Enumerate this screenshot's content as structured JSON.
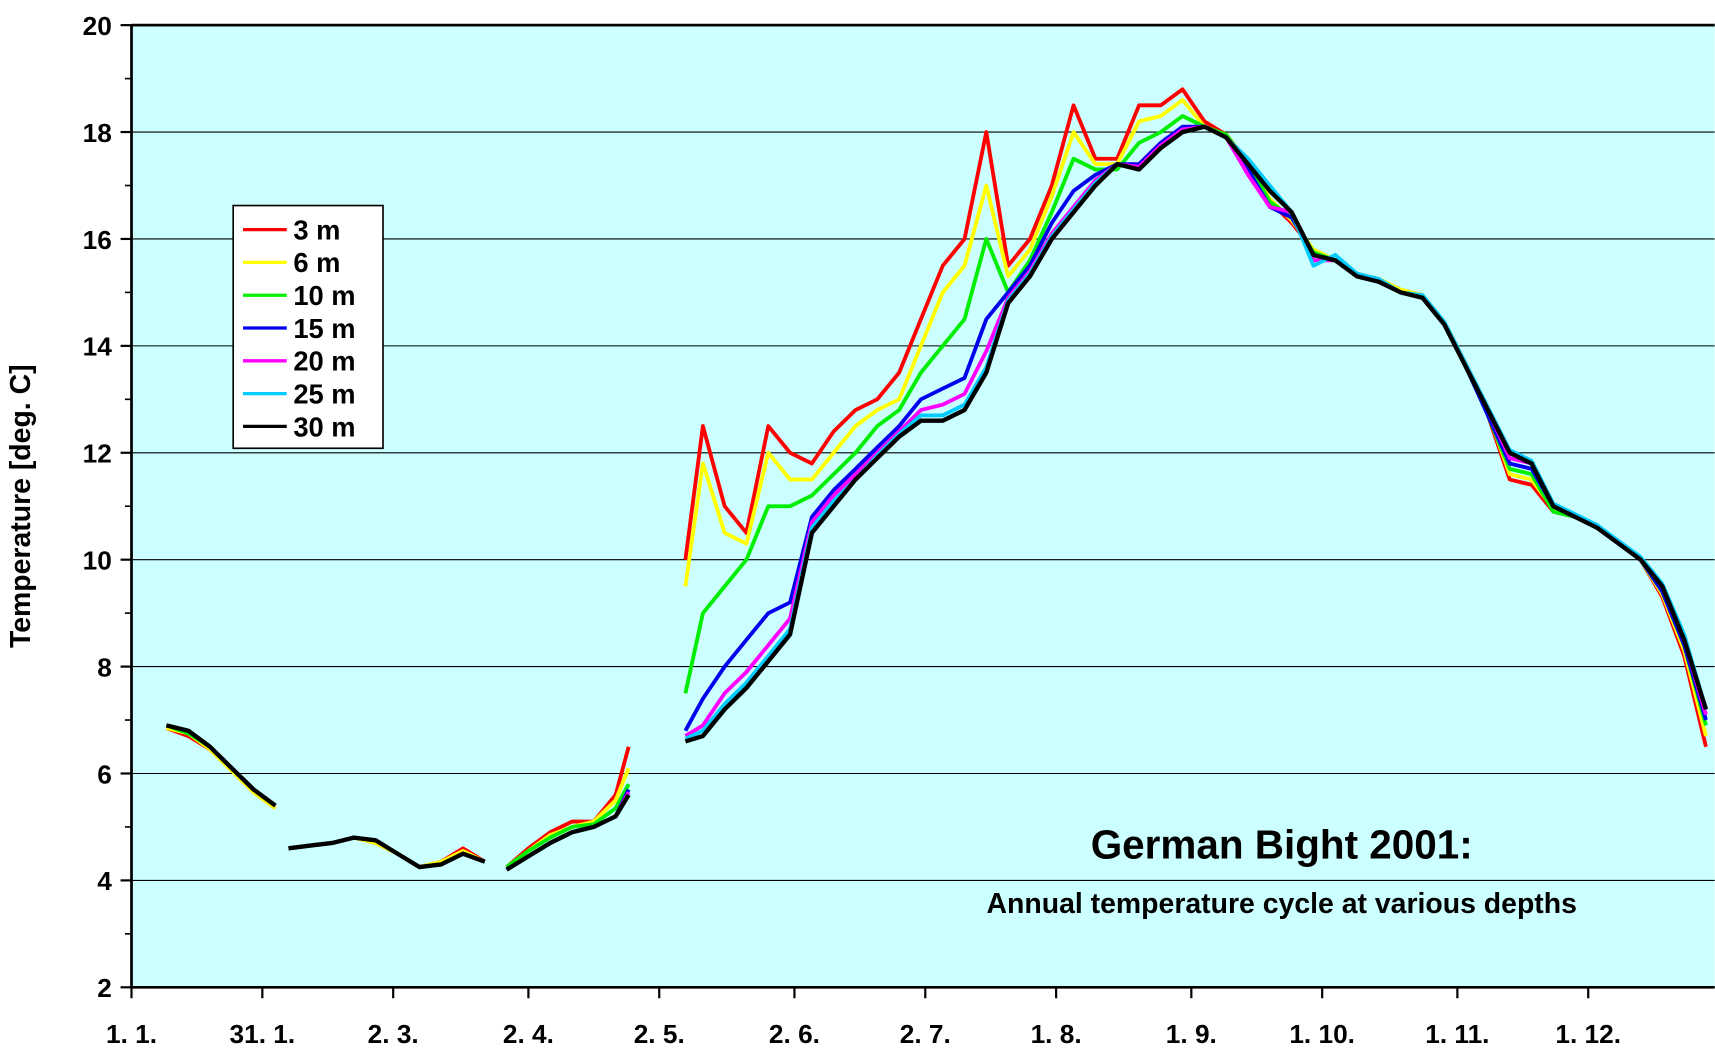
{
  "chart_data": {
    "type": "line",
    "title": "German Bight 2001:",
    "subtitle": "Annual temperature cycle at various depths",
    "y_label": "Temperature [deg. C]",
    "xlim": [
      0,
      363
    ],
    "ylim": [
      2,
      20
    ],
    "yticks": [
      2,
      4,
      6,
      8,
      10,
      12,
      14,
      16,
      18,
      20
    ],
    "xticks": [
      {
        "value": 0,
        "label": "1. 1."
      },
      {
        "value": 30,
        "label": "31. 1."
      },
      {
        "value": 60,
        "label": "2. 3."
      },
      {
        "value": 91,
        "label": "2. 4."
      },
      {
        "value": 121,
        "label": "2. 5."
      },
      {
        "value": 152,
        "label": "2. 6."
      },
      {
        "value": 182,
        "label": "2. 7."
      },
      {
        "value": 212,
        "label": "1. 8."
      },
      {
        "value": 243,
        "label": "1. 9."
      },
      {
        "value": 273,
        "label": "1. 10."
      },
      {
        "value": 304,
        "label": "1. 11."
      },
      {
        "value": 334,
        "label": "1. 12."
      }
    ],
    "grid": true,
    "background": "#ccffff",
    "x": [
      8,
      13,
      18,
      23,
      28,
      33,
      34.5,
      36,
      41,
      46,
      51,
      56,
      61,
      66,
      71,
      76,
      81,
      83.5,
      86,
      91,
      96,
      101,
      106,
      111,
      114,
      120,
      127,
      131,
      136,
      141,
      146,
      151,
      156,
      161,
      166,
      171,
      176,
      181,
      186,
      191,
      196,
      201,
      206,
      211,
      216,
      221,
      226,
      231,
      236,
      241,
      246,
      251,
      256,
      261,
      266,
      271,
      276,
      281,
      286,
      291,
      296,
      301,
      306,
      311,
      316,
      321,
      326,
      331,
      336,
      341,
      346,
      351,
      356,
      361
    ],
    "series": [
      {
        "name": "3 m",
        "color": "#ff0000",
        "values": [
          6.85,
          6.7,
          6.45,
          6.05,
          5.65,
          5.35,
          null,
          4.6,
          4.65,
          4.7,
          4.8,
          4.7,
          4.5,
          4.25,
          4.35,
          4.6,
          4.35,
          null,
          4.25,
          4.6,
          4.9,
          5.1,
          5.1,
          5.6,
          6.5,
          null,
          10.0,
          12.5,
          11.0,
          10.5,
          12.5,
          12.0,
          11.8,
          12.4,
          12.8,
          13.0,
          13.5,
          14.5,
          15.5,
          16.0,
          18.0,
          15.5,
          16.0,
          17.0,
          18.5,
          17.5,
          17.5,
          18.5,
          18.5,
          18.8,
          18.2,
          17.95,
          17.45,
          16.7,
          16.3,
          15.8,
          15.6,
          15.35,
          15.25,
          15.05,
          14.95,
          14.45,
          13.65,
          12.7,
          11.5,
          11.4,
          10.9,
          10.8,
          10.6,
          10.3,
          10.0,
          9.3,
          8.2,
          6.5
        ]
      },
      {
        "name": "6 m",
        "color": "#ffff00",
        "values": [
          6.85,
          6.75,
          6.45,
          6.05,
          5.65,
          5.35,
          null,
          4.6,
          4.65,
          4.7,
          4.8,
          4.7,
          4.5,
          4.25,
          4.35,
          4.55,
          4.35,
          null,
          4.25,
          4.55,
          4.85,
          5.0,
          5.1,
          5.5,
          6.1,
          null,
          9.5,
          11.8,
          10.5,
          10.3,
          12.0,
          11.5,
          11.5,
          12.0,
          12.5,
          12.8,
          13.0,
          14.0,
          15.0,
          15.5,
          17.0,
          15.3,
          15.8,
          16.8,
          18.0,
          17.4,
          17.4,
          18.2,
          18.3,
          18.6,
          18.1,
          17.95,
          17.45,
          16.75,
          16.35,
          15.8,
          15.6,
          15.35,
          15.25,
          15.05,
          14.95,
          14.45,
          13.65,
          12.75,
          11.6,
          11.5,
          10.95,
          10.8,
          10.6,
          10.3,
          10.0,
          9.35,
          8.3,
          6.7
        ]
      },
      {
        "name": "10 m",
        "color": "#00ee00",
        "values": [
          6.9,
          6.75,
          6.5,
          6.1,
          5.7,
          5.4,
          null,
          4.6,
          4.65,
          4.7,
          4.8,
          4.75,
          4.5,
          4.25,
          4.3,
          4.5,
          4.35,
          null,
          4.25,
          4.55,
          4.8,
          5.0,
          5.05,
          5.35,
          5.8,
          null,
          7.5,
          9.0,
          9.5,
          10.0,
          11.0,
          11.0,
          11.2,
          11.6,
          12.0,
          12.5,
          12.8,
          13.5,
          14.0,
          14.5,
          16.0,
          15.0,
          15.6,
          16.5,
          17.5,
          17.3,
          17.3,
          17.8,
          18.0,
          18.3,
          18.1,
          17.95,
          17.4,
          16.7,
          16.4,
          15.75,
          15.6,
          15.3,
          15.2,
          15.0,
          14.9,
          14.4,
          13.6,
          12.7,
          11.7,
          11.6,
          10.9,
          10.8,
          10.6,
          10.3,
          10.0,
          9.4,
          8.4,
          6.9
        ]
      },
      {
        "name": "15 m",
        "color": "#0000ee",
        "values": [
          6.9,
          6.8,
          6.5,
          6.1,
          5.7,
          5.4,
          null,
          4.6,
          4.65,
          4.7,
          4.8,
          4.75,
          4.5,
          4.25,
          4.3,
          4.5,
          4.35,
          null,
          4.2,
          4.45,
          4.7,
          4.9,
          5.0,
          5.2,
          5.7,
          null,
          6.8,
          7.4,
          8.0,
          8.5,
          9.0,
          9.2,
          10.8,
          11.3,
          11.7,
          12.1,
          12.5,
          13.0,
          13.2,
          13.4,
          14.5,
          15.0,
          15.5,
          16.3,
          16.9,
          17.2,
          17.4,
          17.4,
          17.8,
          18.1,
          18.1,
          17.9,
          17.3,
          16.6,
          16.4,
          15.7,
          15.6,
          15.3,
          15.2,
          15.0,
          14.9,
          14.4,
          13.6,
          12.7,
          11.8,
          11.7,
          11.0,
          10.8,
          10.6,
          10.3,
          10.0,
          9.4,
          8.4,
          7.0
        ]
      },
      {
        "name": "20 m",
        "color": "#ff00ff",
        "values": [
          6.9,
          6.8,
          6.5,
          6.1,
          5.7,
          5.4,
          null,
          4.6,
          4.65,
          4.7,
          4.8,
          4.75,
          4.5,
          4.25,
          4.3,
          4.5,
          4.35,
          null,
          4.2,
          4.45,
          4.7,
          4.9,
          5.0,
          5.2,
          5.65,
          null,
          6.7,
          6.9,
          7.5,
          7.9,
          8.4,
          8.9,
          10.7,
          11.2,
          11.6,
          12.0,
          12.4,
          12.8,
          12.9,
          13.1,
          13.9,
          14.9,
          15.4,
          16.1,
          16.6,
          17.1,
          17.4,
          17.35,
          17.75,
          18.05,
          18.1,
          17.9,
          17.2,
          16.6,
          16.5,
          15.6,
          15.6,
          15.3,
          15.2,
          15.0,
          14.9,
          14.4,
          13.6,
          12.8,
          11.9,
          11.8,
          11.0,
          10.8,
          10.6,
          10.3,
          10.0,
          9.5,
          8.5,
          7.1
        ]
      },
      {
        "name": "25 m",
        "color": "#00ccff",
        "values": [
          6.9,
          6.8,
          6.5,
          6.1,
          5.7,
          5.4,
          null,
          4.6,
          4.65,
          4.7,
          4.8,
          4.75,
          4.5,
          4.25,
          4.3,
          4.5,
          4.35,
          null,
          4.2,
          4.45,
          4.7,
          4.9,
          5.0,
          5.2,
          5.6,
          null,
          6.65,
          6.8,
          7.3,
          7.7,
          8.2,
          8.7,
          10.6,
          11.1,
          11.5,
          11.95,
          12.35,
          12.7,
          12.7,
          12.9,
          13.6,
          14.85,
          15.35,
          16.05,
          16.55,
          17.05,
          17.4,
          17.3,
          17.7,
          18.0,
          18.1,
          17.9,
          17.5,
          17.0,
          16.5,
          15.5,
          15.7,
          15.35,
          15.25,
          15.0,
          14.95,
          14.45,
          13.65,
          12.85,
          12.05,
          11.85,
          11.05,
          10.85,
          10.65,
          10.35,
          10.05,
          9.55,
          8.6,
          7.2
        ]
      },
      {
        "name": "30 m",
        "color": "#000000",
        "values": [
          6.9,
          6.8,
          6.5,
          6.1,
          5.7,
          5.4,
          null,
          4.6,
          4.65,
          4.7,
          4.8,
          4.75,
          4.5,
          4.25,
          4.3,
          4.5,
          4.35,
          null,
          4.2,
          4.45,
          4.7,
          4.9,
          5.0,
          5.2,
          5.6,
          null,
          6.6,
          6.7,
          7.2,
          7.6,
          8.1,
          8.6,
          10.5,
          11.0,
          11.5,
          11.9,
          12.3,
          12.6,
          12.6,
          12.8,
          13.5,
          14.8,
          15.3,
          16.0,
          16.5,
          17.0,
          17.4,
          17.3,
          17.7,
          18.0,
          18.1,
          17.9,
          17.4,
          16.9,
          16.5,
          15.7,
          15.6,
          15.3,
          15.2,
          15.0,
          14.9,
          14.4,
          13.6,
          12.8,
          12.0,
          11.8,
          11.0,
          10.8,
          10.6,
          10.3,
          10.0,
          9.5,
          8.5,
          7.2
        ]
      }
    ]
  }
}
